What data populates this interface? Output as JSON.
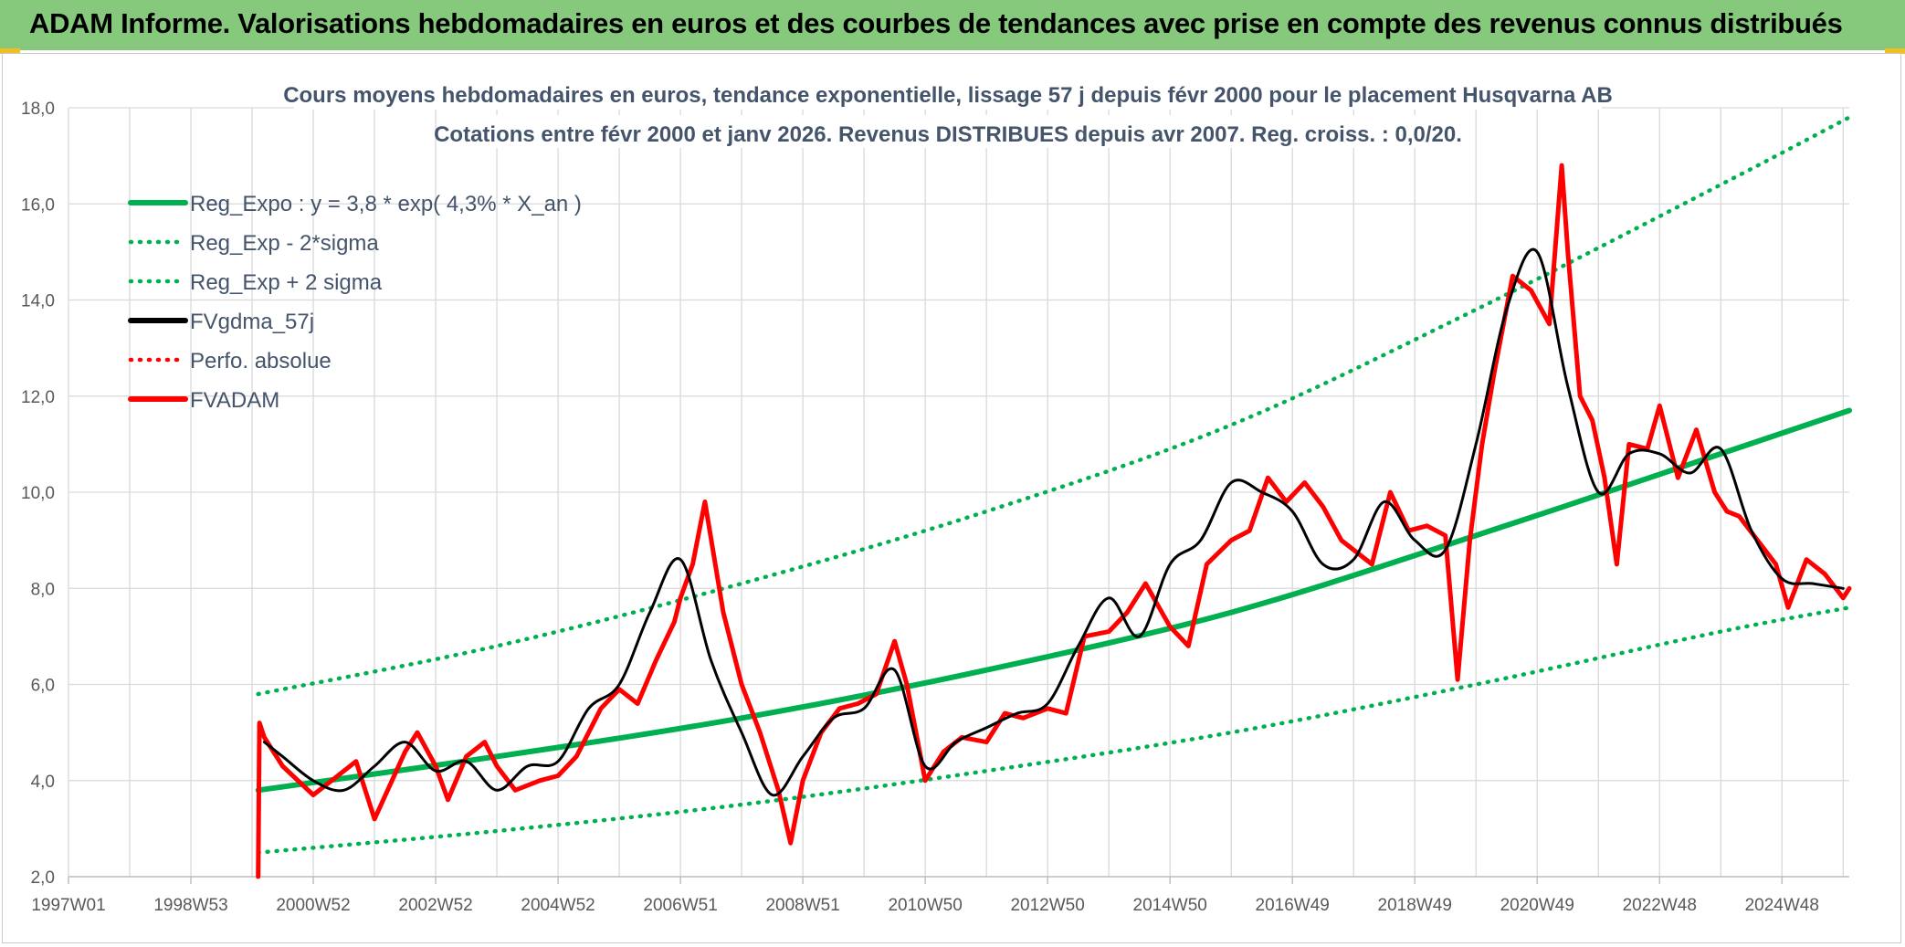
{
  "header": {
    "title": "ADAM Informe. Valorisations hebdomadaires en euros et des courbes de tendances avec prise en compte des revenus connus distribués"
  },
  "colors": {
    "header_bg": "#86c97d",
    "green": "#00b050",
    "red": "#ff0000",
    "black": "#000000",
    "title": "#44546a"
  },
  "chart_data": {
    "type": "line",
    "title": "Cours moyens hebdomadaires en euros, tendance exponentielle, lissage 57 j depuis févr 2000 pour le placement Husqvarna AB",
    "subtitle": "Cotations entre févr 2000 et janv 2026. Revenus DISTRIBUES depuis avr 2007. Reg. croiss. : 0,0/20.",
    "ylim": [
      2,
      18
    ],
    "y_ticks": [
      "18,0",
      "16,0",
      "14,0",
      "12,0",
      "10,0",
      "8,0",
      "6,0",
      "4,0",
      "2,0"
    ],
    "x_tick_labels": [
      "1997W01",
      "1998W53",
      "2000W52",
      "2002W52",
      "2004W52",
      "2006W51",
      "2008W51",
      "2010W50",
      "2012W50",
      "2014W50",
      "2016W49",
      "2018W49",
      "2020W49",
      "2022W48",
      "2024W48"
    ],
    "xlim": [
      1997.0,
      2026.1
    ],
    "grid": true,
    "legend_position": "top-left",
    "legend": [
      {
        "name": "Reg_Expo : y = 3,8 * exp( 4,3% *  X_an )",
        "style": "solid",
        "color": "#00b050"
      },
      {
        "name": "Reg_Exp - 2*sigma",
        "style": "dotted",
        "color": "#00b050"
      },
      {
        "name": "Reg_Exp + 2 sigma",
        "style": "dotted",
        "color": "#00b050"
      },
      {
        "name": "FVgdma_57j",
        "style": "solid",
        "color": "#000000"
      },
      {
        "name": "Perfo. absolue",
        "style": "dotted",
        "color": "#ff0000"
      },
      {
        "name": "FVADAM",
        "style": "solid",
        "color": "#ff0000"
      }
    ],
    "series": [
      {
        "name": "Reg_Expo : y = 3,8 * exp( 4,3% *  X_an )",
        "x": [
          2000.1,
          2004,
          2008,
          2012,
          2016,
          2020,
          2024,
          2026.1
        ],
        "y": [
          3.8,
          4.5,
          5.3,
          6.3,
          7.5,
          9.1,
          10.8,
          11.7
        ]
      },
      {
        "name": "Reg_Exp - 2*sigma",
        "x": [
          2000.1,
          2004,
          2008,
          2012,
          2016,
          2020,
          2024,
          2026.1
        ],
        "y": [
          2.5,
          2.95,
          3.5,
          4.2,
          5.0,
          6.0,
          7.1,
          7.6
        ]
      },
      {
        "name": "Reg_Exp + 2 sigma",
        "x": [
          2000.1,
          2004,
          2008,
          2012,
          2016,
          2020,
          2024,
          2026.1
        ],
        "y": [
          5.8,
          6.8,
          8.1,
          9.6,
          11.4,
          13.8,
          16.4,
          17.8
        ]
      },
      {
        "name": "FVgdma_57j",
        "x": [
          2000.2,
          2000.5,
          2001.0,
          2001.5,
          2002.0,
          2002.5,
          2003.0,
          2003.5,
          2004.0,
          2004.5,
          2005.0,
          2005.5,
          2006.0,
          2006.5,
          2007.0,
          2007.5,
          2008.0,
          2008.5,
          2009.0,
          2009.5,
          2010.0,
          2010.5,
          2011.0,
          2011.5,
          2012.0,
          2012.5,
          2013.0,
          2013.5,
          2014.0,
          2014.5,
          2015.0,
          2015.5,
          2016.0,
          2016.5,
          2017.0,
          2017.5,
          2018.0,
          2018.5,
          2019.0,
          2019.5,
          2020.0,
          2020.5,
          2021.0,
          2021.5,
          2022.0,
          2022.5,
          2023.0,
          2023.5,
          2024.0,
          2024.5,
          2025.0,
          2025.5,
          2026.0
        ],
        "y": [
          4.8,
          4.5,
          4.0,
          3.8,
          4.3,
          4.8,
          4.2,
          4.4,
          3.8,
          4.3,
          4.4,
          5.5,
          6.0,
          7.5,
          8.6,
          6.5,
          5.0,
          3.7,
          4.5,
          5.3,
          5.5,
          6.3,
          4.3,
          4.8,
          5.1,
          5.4,
          5.6,
          6.8,
          7.8,
          7.0,
          8.5,
          9.0,
          10.2,
          10.0,
          9.6,
          8.5,
          8.6,
          9.8,
          9.0,
          8.8,
          11.0,
          13.8,
          15.0,
          12.2,
          10.0,
          10.8,
          10.8,
          10.4,
          10.9,
          9.2,
          8.2,
          8.1,
          8.0
        ]
      },
      {
        "name": "FVADAM",
        "x": [
          2000.1,
          2000.12,
          2000.2,
          2000.5,
          2001.0,
          2001.3,
          2001.7,
          2002.0,
          2002.5,
          2002.7,
          2003.0,
          2003.2,
          2003.5,
          2003.8,
          2004.0,
          2004.3,
          2004.7,
          2005.0,
          2005.3,
          2005.7,
          2006.0,
          2006.3,
          2006.6,
          2006.9,
          2007.0,
          2007.2,
          2007.4,
          2007.7,
          2008.0,
          2008.3,
          2008.6,
          2008.8,
          2009.0,
          2009.3,
          2009.6,
          2009.9,
          2010.2,
          2010.5,
          2010.7,
          2011.0,
          2011.3,
          2011.6,
          2012.0,
          2012.3,
          2012.6,
          2013.0,
          2013.3,
          2013.6,
          2014.0,
          2014.3,
          2014.6,
          2015.0,
          2015.3,
          2015.6,
          2016.0,
          2016.3,
          2016.6,
          2016.9,
          2017.2,
          2017.5,
          2017.8,
          2018.0,
          2018.3,
          2018.6,
          2018.9,
          2019.2,
          2019.5,
          2019.7,
          2019.9,
          2020.1,
          2020.3,
          2020.6,
          2020.9,
          2021.2,
          2021.4,
          2021.5,
          2021.7,
          2021.9,
          2022.1,
          2022.3,
          2022.5,
          2022.8,
          2023.0,
          2023.3,
          2023.6,
          2023.9,
          2024.1,
          2024.3,
          2024.6,
          2024.9,
          2025.1,
          2025.4,
          2025.7,
          2026.0,
          2026.1
        ],
        "y": [
          2.0,
          5.2,
          4.9,
          4.3,
          3.7,
          4.0,
          4.4,
          3.2,
          4.6,
          5.0,
          4.3,
          3.6,
          4.5,
          4.8,
          4.3,
          3.8,
          4.0,
          4.1,
          4.5,
          5.5,
          5.9,
          5.6,
          6.5,
          7.3,
          7.8,
          8.5,
          9.8,
          7.5,
          6.0,
          5.0,
          3.8,
          2.7,
          4.0,
          5.0,
          5.5,
          5.6,
          5.8,
          6.9,
          6.0,
          4.0,
          4.6,
          4.9,
          4.8,
          5.4,
          5.3,
          5.5,
          5.4,
          7.0,
          7.1,
          7.5,
          8.1,
          7.2,
          6.8,
          8.5,
          9.0,
          9.2,
          10.3,
          9.8,
          10.2,
          9.7,
          9.0,
          8.8,
          8.5,
          10.0,
          9.2,
          9.3,
          9.1,
          6.1,
          9.0,
          11.0,
          12.5,
          14.5,
          14.2,
          13.5,
          16.8,
          15.0,
          12.0,
          11.5,
          10.3,
          8.5,
          11.0,
          10.9,
          11.8,
          10.3,
          11.3,
          10.0,
          9.6,
          9.5,
          9.0,
          8.5,
          7.6,
          8.6,
          8.3,
          7.8,
          8.0
        ]
      }
    ]
  }
}
